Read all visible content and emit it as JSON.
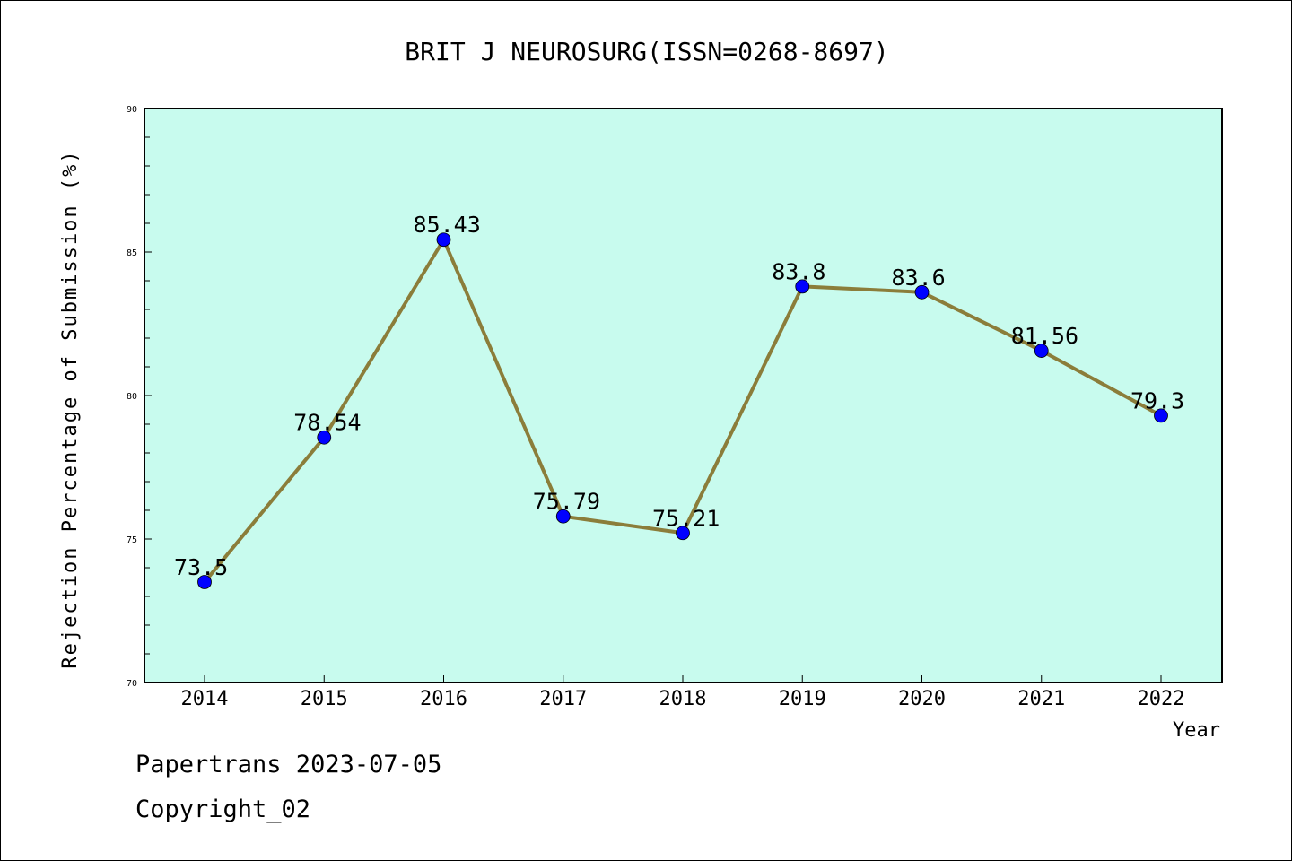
{
  "chart_data": {
    "type": "line",
    "title": "BRIT J NEUROSURG(ISSN=0268-8697)",
    "xlabel": "Year",
    "ylabel": "Rejection Percentage of Submission (%)",
    "categories": [
      "2014",
      "2015",
      "2016",
      "2017",
      "2018",
      "2019",
      "2020",
      "2021",
      "2022"
    ],
    "values": [
      73.5,
      78.54,
      85.43,
      75.79,
      75.21,
      83.8,
      83.6,
      81.56,
      79.3
    ],
    "data_labels": [
      "73.5",
      "78.54",
      "85.43",
      "75.79",
      "75.21",
      "83.8",
      "83.6",
      "81.56",
      "79.3"
    ],
    "ylim": [
      70,
      90
    ],
    "yticks": [
      "70",
      "75",
      "80",
      "85",
      "90"
    ],
    "grid": false,
    "colors": {
      "plot_background": "#c8fbee",
      "line": "#8b7d3a",
      "marker": "#0000ff"
    }
  },
  "footer": {
    "line1": "Papertrans 2023-07-05",
    "line2": "Copyright_02"
  }
}
